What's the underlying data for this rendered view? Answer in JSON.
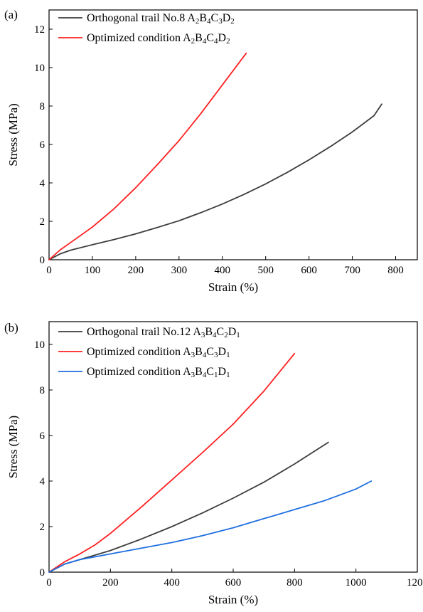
{
  "chart_data": [
    {
      "type": "line",
      "panel_label": "(a)",
      "xlabel": "Strain (%)",
      "ylabel": "Stress (MPa)",
      "xlim": [
        0,
        850
      ],
      "ylim": [
        0,
        13
      ],
      "x_ticks": [
        0,
        100,
        200,
        300,
        400,
        500,
        600,
        700,
        800
      ],
      "y_ticks": [
        0,
        2,
        4,
        6,
        8,
        10,
        12
      ],
      "grid": false,
      "legend_position": "top-left",
      "series": [
        {
          "name": "Orthogonal trail No.8 A2B4C3D2",
          "legend_parts": [
            [
              "Orthogonal trail No.8 A",
              false
            ],
            [
              "2",
              true
            ],
            [
              "B",
              false
            ],
            [
              "4",
              true
            ],
            [
              "C",
              false
            ],
            [
              "3",
              true
            ],
            [
              "D",
              false
            ],
            [
              "2",
              true
            ]
          ],
          "color": "#3c3c3c",
          "x": [
            0,
            25,
            50,
            100,
            150,
            200,
            250,
            300,
            350,
            400,
            450,
            500,
            550,
            600,
            650,
            700,
            750,
            768
          ],
          "y": [
            0,
            0.3,
            0.5,
            0.78,
            1.05,
            1.35,
            1.68,
            2.03,
            2.45,
            2.9,
            3.4,
            3.95,
            4.55,
            5.2,
            5.9,
            6.65,
            7.5,
            8.1
          ]
        },
        {
          "name": "Optimized condition A2B4C4D2",
          "legend_parts": [
            [
              "Optimized condition A",
              false
            ],
            [
              "2",
              true
            ],
            [
              "B",
              false
            ],
            [
              "4",
              true
            ],
            [
              "C",
              false
            ],
            [
              "4",
              true
            ],
            [
              "D",
              false
            ],
            [
              "2",
              true
            ]
          ],
          "color": "#ff2020",
          "x": [
            0,
            25,
            50,
            100,
            150,
            200,
            250,
            300,
            350,
            400,
            455
          ],
          "y": [
            0,
            0.5,
            0.9,
            1.7,
            2.65,
            3.75,
            4.95,
            6.2,
            7.6,
            9.1,
            10.75
          ]
        }
      ]
    },
    {
      "type": "line",
      "panel_label": "(b)",
      "xlabel": "Strain (%)",
      "ylabel": "Stress (MPa)",
      "xlim": [
        0,
        1200
      ],
      "ylim": [
        0,
        11
      ],
      "x_ticks": [
        0,
        200,
        400,
        600,
        800,
        1000,
        1200
      ],
      "y_ticks": [
        0,
        2,
        4,
        6,
        8,
        10
      ],
      "grid": false,
      "legend_position": "top-left",
      "series": [
        {
          "name": "Orthogonal trail No.12 A3B4C2D1",
          "legend_parts": [
            [
              "Orthogonal trail No.12 A",
              false
            ],
            [
              "3",
              true
            ],
            [
              "B",
              false
            ],
            [
              "4",
              true
            ],
            [
              "C",
              false
            ],
            [
              "2",
              true
            ],
            [
              "D",
              false
            ],
            [
              "1",
              true
            ]
          ],
          "color": "#3c3c3c",
          "x": [
            0,
            50,
            100,
            200,
            300,
            400,
            500,
            600,
            700,
            800,
            910
          ],
          "y": [
            0,
            0.35,
            0.55,
            0.95,
            1.45,
            2.0,
            2.6,
            3.25,
            3.95,
            4.75,
            5.7
          ]
        },
        {
          "name": "Optimized condition A3B4C3D1",
          "legend_parts": [
            [
              "Optimized condition A",
              false
            ],
            [
              "3",
              true
            ],
            [
              "B",
              false
            ],
            [
              "4",
              true
            ],
            [
              "C",
              false
            ],
            [
              "3",
              true
            ],
            [
              "D",
              false
            ],
            [
              "1",
              true
            ]
          ],
          "color": "#ff2020",
          "x": [
            0,
            50,
            100,
            150,
            200,
            300,
            400,
            500,
            600,
            700,
            800
          ],
          "y": [
            0,
            0.45,
            0.8,
            1.2,
            1.7,
            2.85,
            4.05,
            5.25,
            6.5,
            7.95,
            9.6
          ]
        },
        {
          "name": "Optimized condition A3B4C1D1",
          "legend_parts": [
            [
              "Optimized condition A",
              false
            ],
            [
              "3",
              true
            ],
            [
              "B",
              false
            ],
            [
              "4",
              true
            ],
            [
              "C",
              false
            ],
            [
              "1",
              true
            ],
            [
              "D",
              false
            ],
            [
              "1",
              true
            ]
          ],
          "color": "#1f6fe0",
          "x": [
            0,
            50,
            100,
            200,
            300,
            400,
            500,
            600,
            700,
            800,
            900,
            1000,
            1050
          ],
          "y": [
            0,
            0.35,
            0.55,
            0.8,
            1.05,
            1.3,
            1.6,
            1.95,
            2.35,
            2.75,
            3.15,
            3.65,
            4.0
          ]
        }
      ]
    }
  ]
}
